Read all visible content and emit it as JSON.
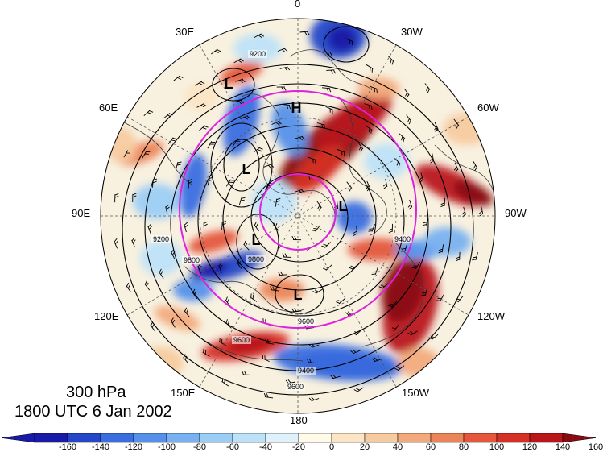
{
  "map": {
    "level_label": "300 hPa",
    "time_label": "1800 UTC 6 Jan 2002",
    "longitude_labels": [
      {
        "key": "lon-0",
        "text": "0"
      },
      {
        "key": "lon-30w",
        "text": "30W"
      },
      {
        "key": "lon-60w",
        "text": "60W"
      },
      {
        "key": "lon-90w",
        "text": "90W"
      },
      {
        "key": "lon-120w",
        "text": "120W"
      },
      {
        "key": "lon-150w",
        "text": "150W"
      },
      {
        "key": "lon-180",
        "text": "180"
      },
      {
        "key": "lon-150e",
        "text": "150E"
      },
      {
        "key": "lon-120e",
        "text": "120E"
      },
      {
        "key": "lon-90e",
        "text": "90E"
      },
      {
        "key": "lon-60e",
        "text": "60E"
      },
      {
        "key": "lon-30e",
        "text": "30E"
      }
    ],
    "contour_labels": [
      "9200",
      "9400",
      "9600",
      "9800",
      "9400",
      "9600",
      "9800",
      "9600",
      "9200"
    ],
    "pressure_centers": [
      "H",
      "L",
      "L",
      "L",
      "L",
      "L"
    ],
    "colorbar": {
      "tick_labels": [
        "-160",
        "-140",
        "-120",
        "-100",
        "-80",
        "-60",
        "-40",
        "-20",
        "0",
        "20",
        "40",
        "60",
        "80",
        "100",
        "120",
        "140",
        "160"
      ],
      "colors": [
        "#1a1aa8",
        "#2546c8",
        "#3a6ee0",
        "#5590ea",
        "#79b1f0",
        "#9ccdf5",
        "#bde2f8",
        "#dff1fb",
        "#fffbe8",
        "#fbe5c4",
        "#f7cba0",
        "#f2aa7c",
        "#ec8459",
        "#e4573b",
        "#d62f26",
        "#b8161b",
        "#8a0c12"
      ]
    },
    "colors": {
      "circle": "#dd22dd",
      "contour": "#000000"
    }
  }
}
